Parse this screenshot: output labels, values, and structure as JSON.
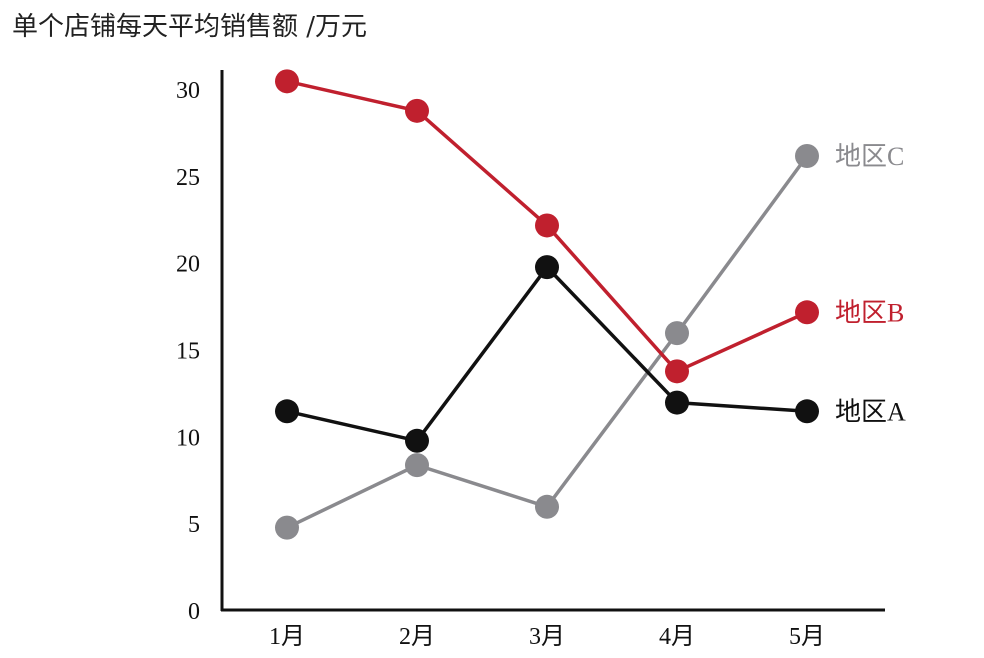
{
  "chart_data": {
    "type": "line",
    "title": "单个店铺每天平均销售额 /万元",
    "xlabel": "",
    "ylabel": "",
    "categories": [
      "1月",
      "2月",
      "3月",
      "4月",
      "5月"
    ],
    "ylim": [
      0,
      30
    ],
    "yticks": [
      0,
      5,
      10,
      15,
      20,
      25,
      30
    ],
    "grid": false,
    "legend_placement": "right, at line ends",
    "series": [
      {
        "name": "地区A",
        "color": "#111111",
        "values": [
          11.5,
          9.8,
          19.8,
          12.0,
          11.5
        ]
      },
      {
        "name": "地区B",
        "color": "#c0202e",
        "values": [
          30.5,
          28.8,
          22.2,
          13.8,
          17.2
        ]
      },
      {
        "name": "地区C",
        "color": "#8a8a8e",
        "values": [
          4.8,
          8.4,
          6.0,
          16.0,
          26.2
        ]
      }
    ]
  }
}
